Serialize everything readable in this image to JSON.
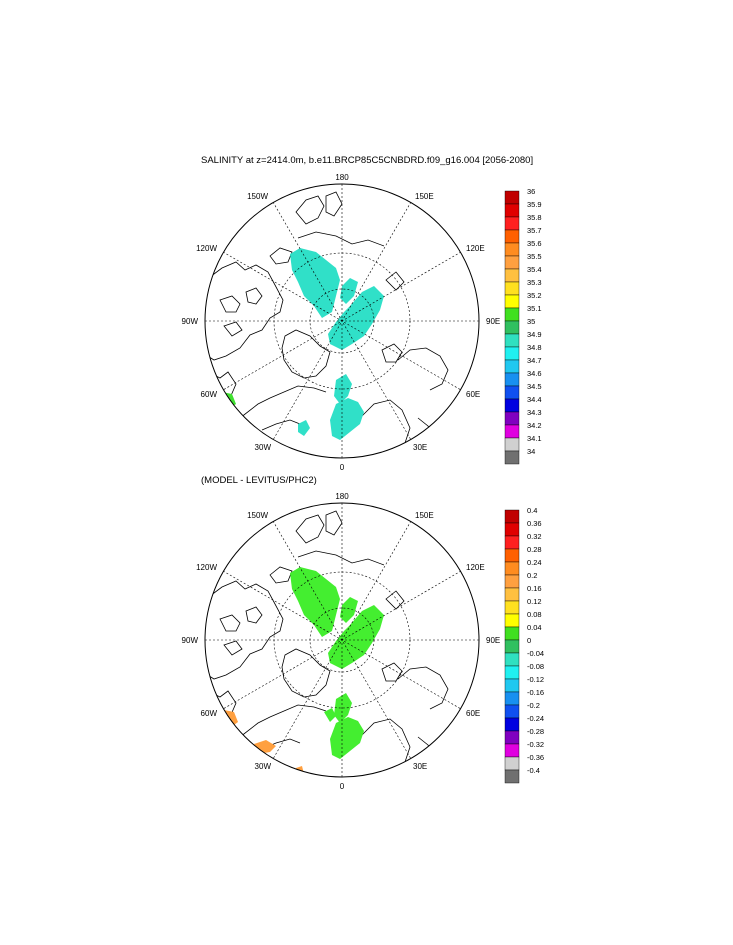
{
  "panel1": {
    "title": "SALINITY at z=2414.0m, b.e11.BRCP85C5CNBDRD.f09_g16.004 [2056-2080]",
    "lon_labels": {
      "top": "180",
      "bottom": "0",
      "left": "90W",
      "right": "90E",
      "nw1": "150W",
      "nw2": "120W",
      "sw1": "60W",
      "sw2": "30W",
      "ne1": "150E",
      "ne2": "120E",
      "se1": "60E",
      "se2": "30E"
    },
    "colorbar_labels": [
      "36",
      "35.9",
      "35.8",
      "35.7",
      "35.6",
      "35.5",
      "35.4",
      "35.3",
      "35.2",
      "35.1",
      "35",
      "34.9",
      "34.8",
      "34.7",
      "34.6",
      "34.5",
      "34.4",
      "34.3",
      "34.2",
      "34.1",
      "34"
    ]
  },
  "panel2": {
    "title": "(MODEL - LEVITUS/PHC2)",
    "lon_labels": {
      "top": "180",
      "bottom": "0",
      "left": "90W",
      "right": "90E",
      "nw1": "150W",
      "nw2": "120W",
      "sw1": "60W",
      "sw2": "30W",
      "ne1": "150E",
      "ne2": "120E",
      "se1": "60E",
      "se2": "30E"
    },
    "colorbar_labels": [
      "0.4",
      "0.36",
      "0.32",
      "0.28",
      "0.24",
      "0.2",
      "0.16",
      "0.12",
      "0.08",
      "0.04",
      "0",
      "-0.04",
      "-0.08",
      "-0.12",
      "-0.16",
      "-0.2",
      "-0.24",
      "-0.28",
      "-0.32",
      "-0.36",
      "-0.4"
    ]
  },
  "colors": {
    "palette_top_to_bottom": [
      "#c00000",
      "#e00000",
      "#ff2020",
      "#ff6000",
      "#ff8c20",
      "#ffa040",
      "#ffc040",
      "#ffe020",
      "#ffff00",
      "#40e020",
      "#30c060",
      "#30e0c0",
      "#20f0f0",
      "#20c8f0",
      "#1890f0",
      "#1050f0",
      "#0000e0",
      "#8000c0",
      "#e000e0",
      "#d0d0d0",
      "#707070"
    ],
    "panel1_fill": "#30e0c8",
    "panel1_fill_low": "#40e030",
    "panel2_fill": "#44ee30",
    "panel2_fill_pos": "#ffa040"
  }
}
